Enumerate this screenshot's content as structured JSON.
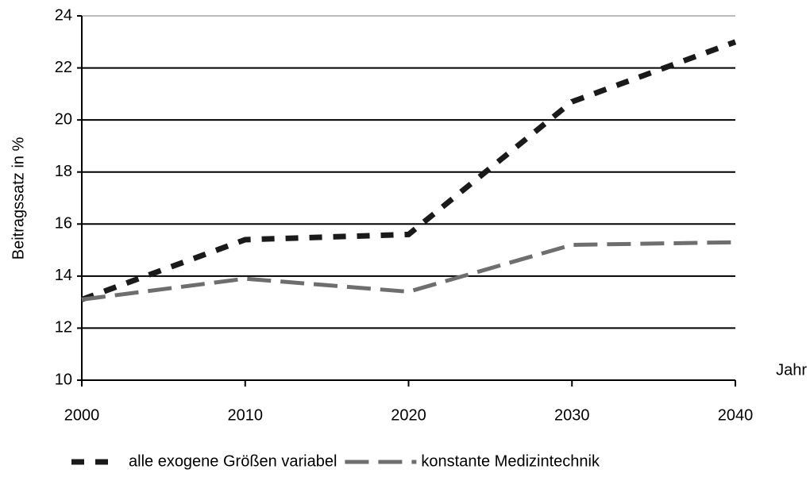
{
  "chart_data": {
    "type": "line",
    "y_label": "Beitragssatz in %",
    "x_label": "Jahr",
    "x": [
      2000,
      2010,
      2020,
      2030,
      2040
    ],
    "xlim": [
      2000,
      2040
    ],
    "xticks": [
      2000,
      2010,
      2020,
      2030,
      2040
    ],
    "ylim": [
      10,
      24
    ],
    "yticks": [
      10,
      12,
      14,
      16,
      18,
      20,
      22,
      24
    ],
    "grid": true,
    "legend": "bottom",
    "series": [
      {
        "name": "alle exogene Größen variabel",
        "color": "#1a1a1a",
        "values": [
          13.1,
          15.4,
          15.6,
          20.7,
          23.0
        ]
      },
      {
        "name": "konstante Medizintechnik",
        "color": "#6e6e6e",
        "values": [
          13.1,
          13.9,
          13.4,
          15.2,
          15.3
        ]
      }
    ]
  }
}
